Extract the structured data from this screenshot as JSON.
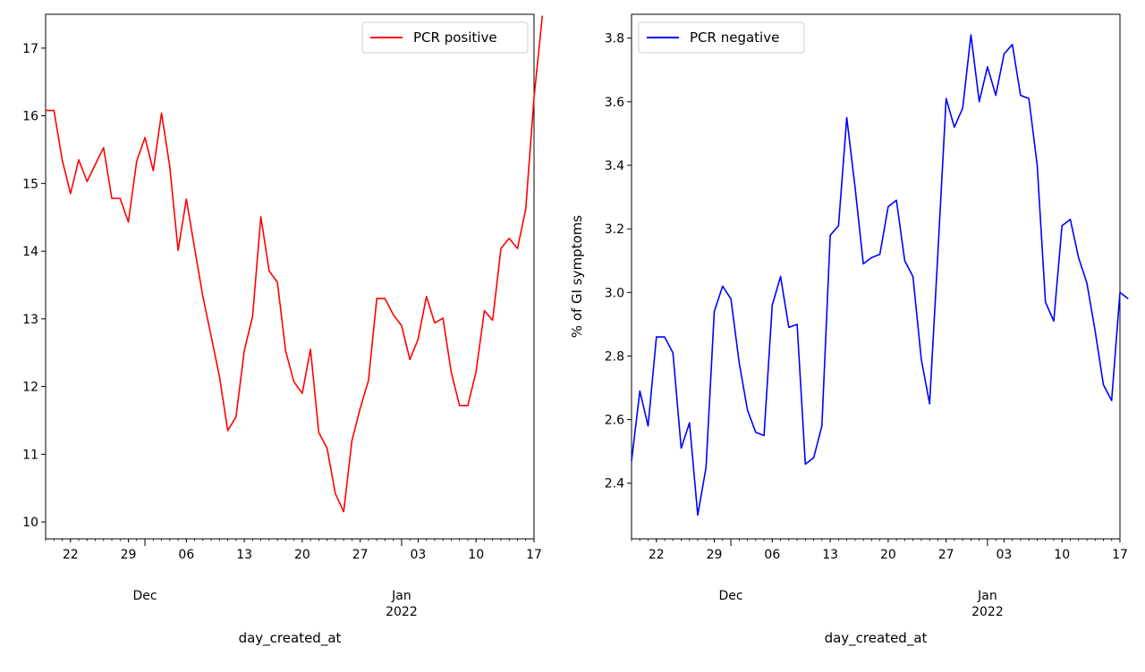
{
  "chart_data": [
    {
      "type": "line",
      "xlabel": "day_created_at",
      "ylabel": "",
      "x_tick_labels": [
        "22",
        "29",
        "06",
        "13",
        "20",
        "27",
        "03",
        "10",
        "17"
      ],
      "x_major_labels": [
        {
          "month": "Dec",
          "year": ""
        },
        {
          "month": "Jan",
          "year": "2022"
        }
      ],
      "y_ticks": [
        10,
        11,
        12,
        13,
        14,
        15,
        16,
        17
      ],
      "ylim": [
        9.75,
        17.5
      ],
      "legend": "upper right",
      "series": [
        {
          "name": "PCR positive",
          "color": "#ff0000",
          "values": [
            16.08,
            16.08,
            15.35,
            14.85,
            15.35,
            15.03,
            15.28,
            15.53,
            14.78,
            14.78,
            14.43,
            15.33,
            15.68,
            15.19,
            16.04,
            15.25,
            14.01,
            14.77,
            14.04,
            13.33,
            12.74,
            12.15,
            11.35,
            11.55,
            12.53,
            13.04,
            14.51,
            13.71,
            13.54,
            12.52,
            12.07,
            11.9,
            12.55,
            11.32,
            11.09,
            10.42,
            10.15,
            11.2,
            11.68,
            12.09,
            13.3,
            13.3,
            13.06,
            12.9,
            12.4,
            12.7,
            13.33,
            12.94,
            13.01,
            12.21,
            11.72,
            11.72,
            12.22,
            13.12,
            12.98,
            14.04,
            14.19,
            14.04,
            14.62,
            16.27,
            17.48
          ]
        }
      ]
    },
    {
      "type": "line",
      "xlabel": "day_created_at",
      "ylabel": "% of GI symptoms",
      "x_tick_labels": [
        "22",
        "29",
        "06",
        "13",
        "20",
        "27",
        "03",
        "10",
        "17"
      ],
      "x_major_labels": [
        {
          "month": "Dec",
          "year": ""
        },
        {
          "month": "Jan",
          "year": "2022"
        }
      ],
      "y_ticks": [
        2.4,
        2.6,
        2.8,
        3.0,
        3.2,
        3.4,
        3.6,
        3.8
      ],
      "y_tick_labels": [
        "2.4",
        "2.6",
        "2.8",
        "3.0",
        "3.2",
        "3.4",
        "3.6",
        "3.8"
      ],
      "ylim": [
        2.225,
        3.875
      ],
      "legend": "upper left",
      "series": [
        {
          "name": "PCR negative",
          "color": "#0000ff",
          "values": [
            2.47,
            2.69,
            2.58,
            2.86,
            2.86,
            2.81,
            2.51,
            2.59,
            2.3,
            2.45,
            2.94,
            3.02,
            2.98,
            2.78,
            2.63,
            2.56,
            2.55,
            2.96,
            3.05,
            2.89,
            2.9,
            2.46,
            2.48,
            2.58,
            3.18,
            3.21,
            3.55,
            3.33,
            3.09,
            3.11,
            3.12,
            3.27,
            3.29,
            3.1,
            3.05,
            2.79,
            2.65,
            3.12,
            3.61,
            3.52,
            3.58,
            3.81,
            3.6,
            3.71,
            3.62,
            3.75,
            3.78,
            3.62,
            3.61,
            3.4,
            2.97,
            2.91,
            3.21,
            3.23,
            3.11,
            3.03,
            2.88,
            2.71,
            2.66,
            3.0,
            2.98
          ]
        }
      ]
    }
  ]
}
